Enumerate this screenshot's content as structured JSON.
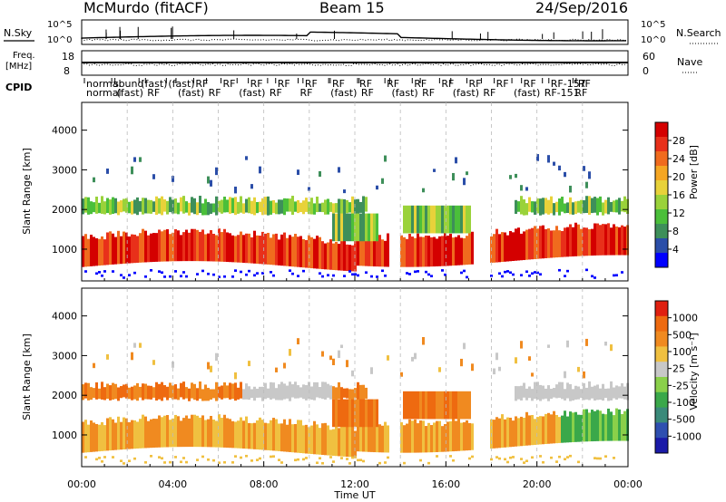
{
  "header": {
    "station": "McMurdo (fitACF)",
    "beam": "Beam 15",
    "date": "24/Sep/2016"
  },
  "panels": {
    "sky": {
      "left_label": "N.Sky",
      "right_label": "N.Search",
      "left_ticks": [
        "10^5",
        "10^0"
      ],
      "right_ticks": [
        "10^5",
        "10^0"
      ]
    },
    "freq": {
      "left_label_1": "Freq.",
      "left_label_2": "[MHz]",
      "left_ticks": [
        "18",
        "8"
      ],
      "right_label": "Nave",
      "right_ticks": [
        "60",
        "0"
      ]
    },
    "cpid": {
      "label": "CPID",
      "row1": [
        "normal",
        "sound",
        "(fast)",
        "(fast)",
        "RF",
        "RF",
        "RF",
        "RF",
        "RF",
        "RF",
        "RF",
        "RF",
        "RF",
        "RF",
        "RF",
        "RF",
        "RF",
        "RF-157",
        "RF"
      ],
      "row2": [
        "normal",
        "(fast)",
        "RF",
        "(fast)",
        "RF",
        "(fast)",
        "RF",
        "RF",
        "(fast)",
        "RF",
        "(fast)",
        "RF",
        "(fast)",
        "RF",
        "(fast)",
        "RF-151",
        "RF"
      ]
    }
  },
  "chart_data": [
    {
      "type": "heatmap",
      "name": "power",
      "ylabel": "Slant Range [km]",
      "yticks": [
        1000,
        2000,
        3000,
        4000
      ],
      "ylim": [
        200,
        4700
      ],
      "colorbar_label": "Power [dB]",
      "colorbar_ticks": [
        "28",
        "24",
        "20",
        "16",
        "12",
        "8",
        "4"
      ],
      "colors": [
        "#0000ff",
        "#2b4ea8",
        "#3e8f5a",
        "#4bbf3a",
        "#9ad23a",
        "#e8d23a",
        "#f5a623",
        "#f06b1e",
        "#e8301a",
        "#d40000"
      ]
    },
    {
      "type": "heatmap",
      "name": "velocity",
      "ylabel": "Slant Range [km]",
      "yticks": [
        1000,
        2000,
        3000,
        4000
      ],
      "ylim": [
        200,
        4700
      ],
      "colorbar_label": "Velocity [m s⁻¹]",
      "colorbar_ticks": [
        "1000",
        "500",
        "100",
        "25",
        "-25",
        "-100",
        "-500",
        "-1000"
      ],
      "colors": [
        "#1a1aa8",
        "#2e4fb0",
        "#3a8a7a",
        "#3aa84a",
        "#8ad04a",
        "#c8c8c8",
        "#f0c040",
        "#f08a20",
        "#ee6a10",
        "#e02010"
      ]
    }
  ],
  "xaxis": {
    "label": "Time UT",
    "ticks": [
      "00:00",
      "04:00",
      "08:00",
      "12:00",
      "16:00",
      "20:00",
      "00:00"
    ]
  }
}
